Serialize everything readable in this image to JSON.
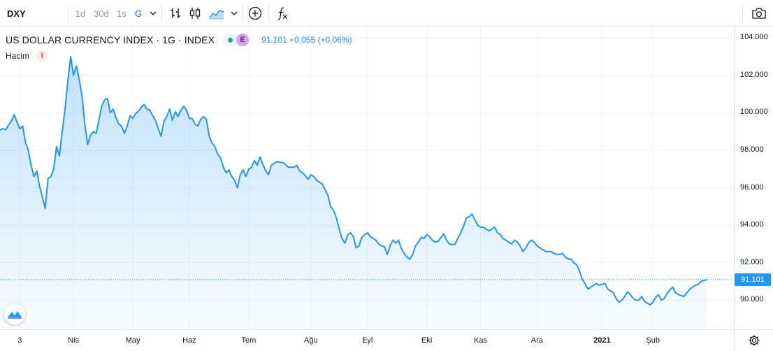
{
  "toolbar": {
    "symbol": "DXY",
    "timeframes": [
      {
        "label": "1d",
        "active": false
      },
      {
        "label": "30d",
        "active": false
      },
      {
        "label": "1s",
        "active": false
      },
      {
        "label": "G",
        "active": true
      }
    ],
    "icons": [
      "chevron-down-icon",
      "bar-chart-icon",
      "candlestick-icon",
      "area-chart-icon",
      "chevron-down-icon",
      "add-indicator-icon",
      "function-icon",
      "camera-icon"
    ]
  },
  "legend": {
    "title": "US DOLLAR CURRENCY INDEX · 1G · INDEX",
    "badge": "E",
    "values": "91.101  +0.055 (+0.06%)",
    "volume_label": "Hacim",
    "volume_warning": "!"
  },
  "colors": {
    "line": "#2196f3",
    "fill": "#2196f3",
    "last_price": "#2196f3"
  },
  "chart_data": {
    "type": "area",
    "title": "US DOLLAR CURRENCY INDEX · 1G · INDEX",
    "ylim": [
      88.45,
      104.6
    ],
    "yticks": [
      104.0,
      102.0,
      100.0,
      98.0,
      96.0,
      94.0,
      92.0,
      90.0
    ],
    "ytick_labels": [
      "104.000",
      "102.000",
      "100.000",
      "98.000",
      "96.000",
      "94.000",
      "92.000",
      "90.000"
    ],
    "last_value": 91.101,
    "last_value_label": "91.101",
    "x_labels": [
      "3",
      "Nis",
      "May",
      "Haz",
      "Tem",
      "Ağu",
      "Eyl",
      "Eki",
      "Kas",
      "Ara",
      "2021",
      "Şub"
    ],
    "x_label_index": [
      7,
      26,
      47,
      67,
      88,
      110,
      130,
      151,
      170,
      190,
      213,
      231
    ],
    "bold_labels": [
      "2021"
    ],
    "grid": true,
    "values": [
      99.08,
      99.15,
      99.1,
      99.35,
      99.55,
      99.9,
      99.5,
      99.15,
      99.3,
      98.4,
      98.0,
      97.2,
      96.6,
      96.9,
      96.1,
      95.5,
      94.9,
      96.5,
      96.6,
      97.0,
      98.2,
      97.7,
      99.0,
      100.2,
      101.7,
      103.0,
      102.0,
      102.5,
      101.8,
      100.9,
      99.4,
      98.3,
      98.8,
      99.0,
      98.9,
      99.6,
      100.35,
      100.7,
      100.75,
      100.0,
      100.2,
      99.75,
      99.4,
      99.3,
      98.9,
      99.3,
      99.85,
      99.7,
      99.95,
      100.1,
      100.3,
      100.45,
      100.2,
      100.15,
      99.85,
      99.6,
      99.15,
      98.75,
      99.55,
      99.8,
      100.2,
      99.6,
      100.05,
      99.8,
      100.15,
      100.35,
      100.15,
      99.7,
      99.7,
      99.4,
      99.3,
      99.65,
      99.8,
      99.65,
      98.75,
      98.4,
      98.2,
      97.8,
      97.6,
      97.1,
      96.8,
      96.95,
      96.6,
      96.4,
      96.0,
      96.7,
      96.95,
      96.6,
      97.0,
      97.1,
      97.45,
      97.2,
      97.65,
      97.25,
      96.9,
      96.7,
      97.2,
      97.3,
      97.4,
      97.35,
      97.35,
      97.25,
      97.1,
      97.1,
      97.1,
      97.2,
      96.9,
      96.8,
      96.65,
      96.45,
      96.7,
      96.6,
      96.4,
      96.3,
      96.2,
      95.9,
      95.6,
      95.0,
      94.8,
      94.4,
      93.8,
      93.3,
      93.05,
      93.5,
      93.6,
      93.4,
      92.8,
      92.9,
      93.35,
      93.5,
      93.6,
      93.4,
      93.3,
      93.2,
      93.0,
      92.9,
      92.85,
      92.45,
      92.9,
      93.2,
      93.05,
      93.2,
      92.75,
      92.5,
      92.3,
      92.2,
      92.45,
      92.9,
      93.1,
      93.35,
      93.3,
      93.5,
      93.4,
      93.2,
      93.1,
      93.15,
      93.35,
      93.55,
      93.2,
      93.0,
      92.95,
      93.0,
      93.3,
      93.6,
      93.95,
      94.4,
      94.45,
      94.6,
      94.3,
      94.0,
      93.9,
      93.9,
      93.8,
      93.7,
      93.8,
      93.9,
      93.6,
      93.5,
      93.3,
      93.2,
      93.1,
      93.0,
      93.2,
      93.1,
      92.9,
      92.6,
      92.8,
      93.05,
      93.2,
      93.1,
      92.9,
      92.8,
      92.7,
      92.6,
      92.6,
      92.6,
      92.5,
      92.45,
      92.45,
      92.5,
      92.3,
      92.2,
      92.2,
      92.0,
      91.9,
      91.6,
      91.1,
      90.9,
      90.6,
      90.7,
      90.8,
      90.9,
      90.8,
      90.85,
      90.9,
      90.6,
      90.5,
      90.4,
      90.1,
      89.9,
      90.0,
      90.2,
      90.45,
      90.3,
      90.1,
      90.0,
      90.0,
      90.2,
      89.95,
      89.85,
      89.75,
      89.9,
      90.15,
      90.3,
      90.0,
      90.1,
      90.35,
      90.55,
      90.7,
      90.4,
      90.3,
      90.25,
      90.2,
      90.4,
      90.6,
      90.7,
      90.8,
      90.85,
      91.0,
      91.05,
      91.101
    ],
    "series": [
      {
        "name": "US DOLLAR CURRENCY INDEX",
        "values_ref": "values"
      }
    ]
  }
}
